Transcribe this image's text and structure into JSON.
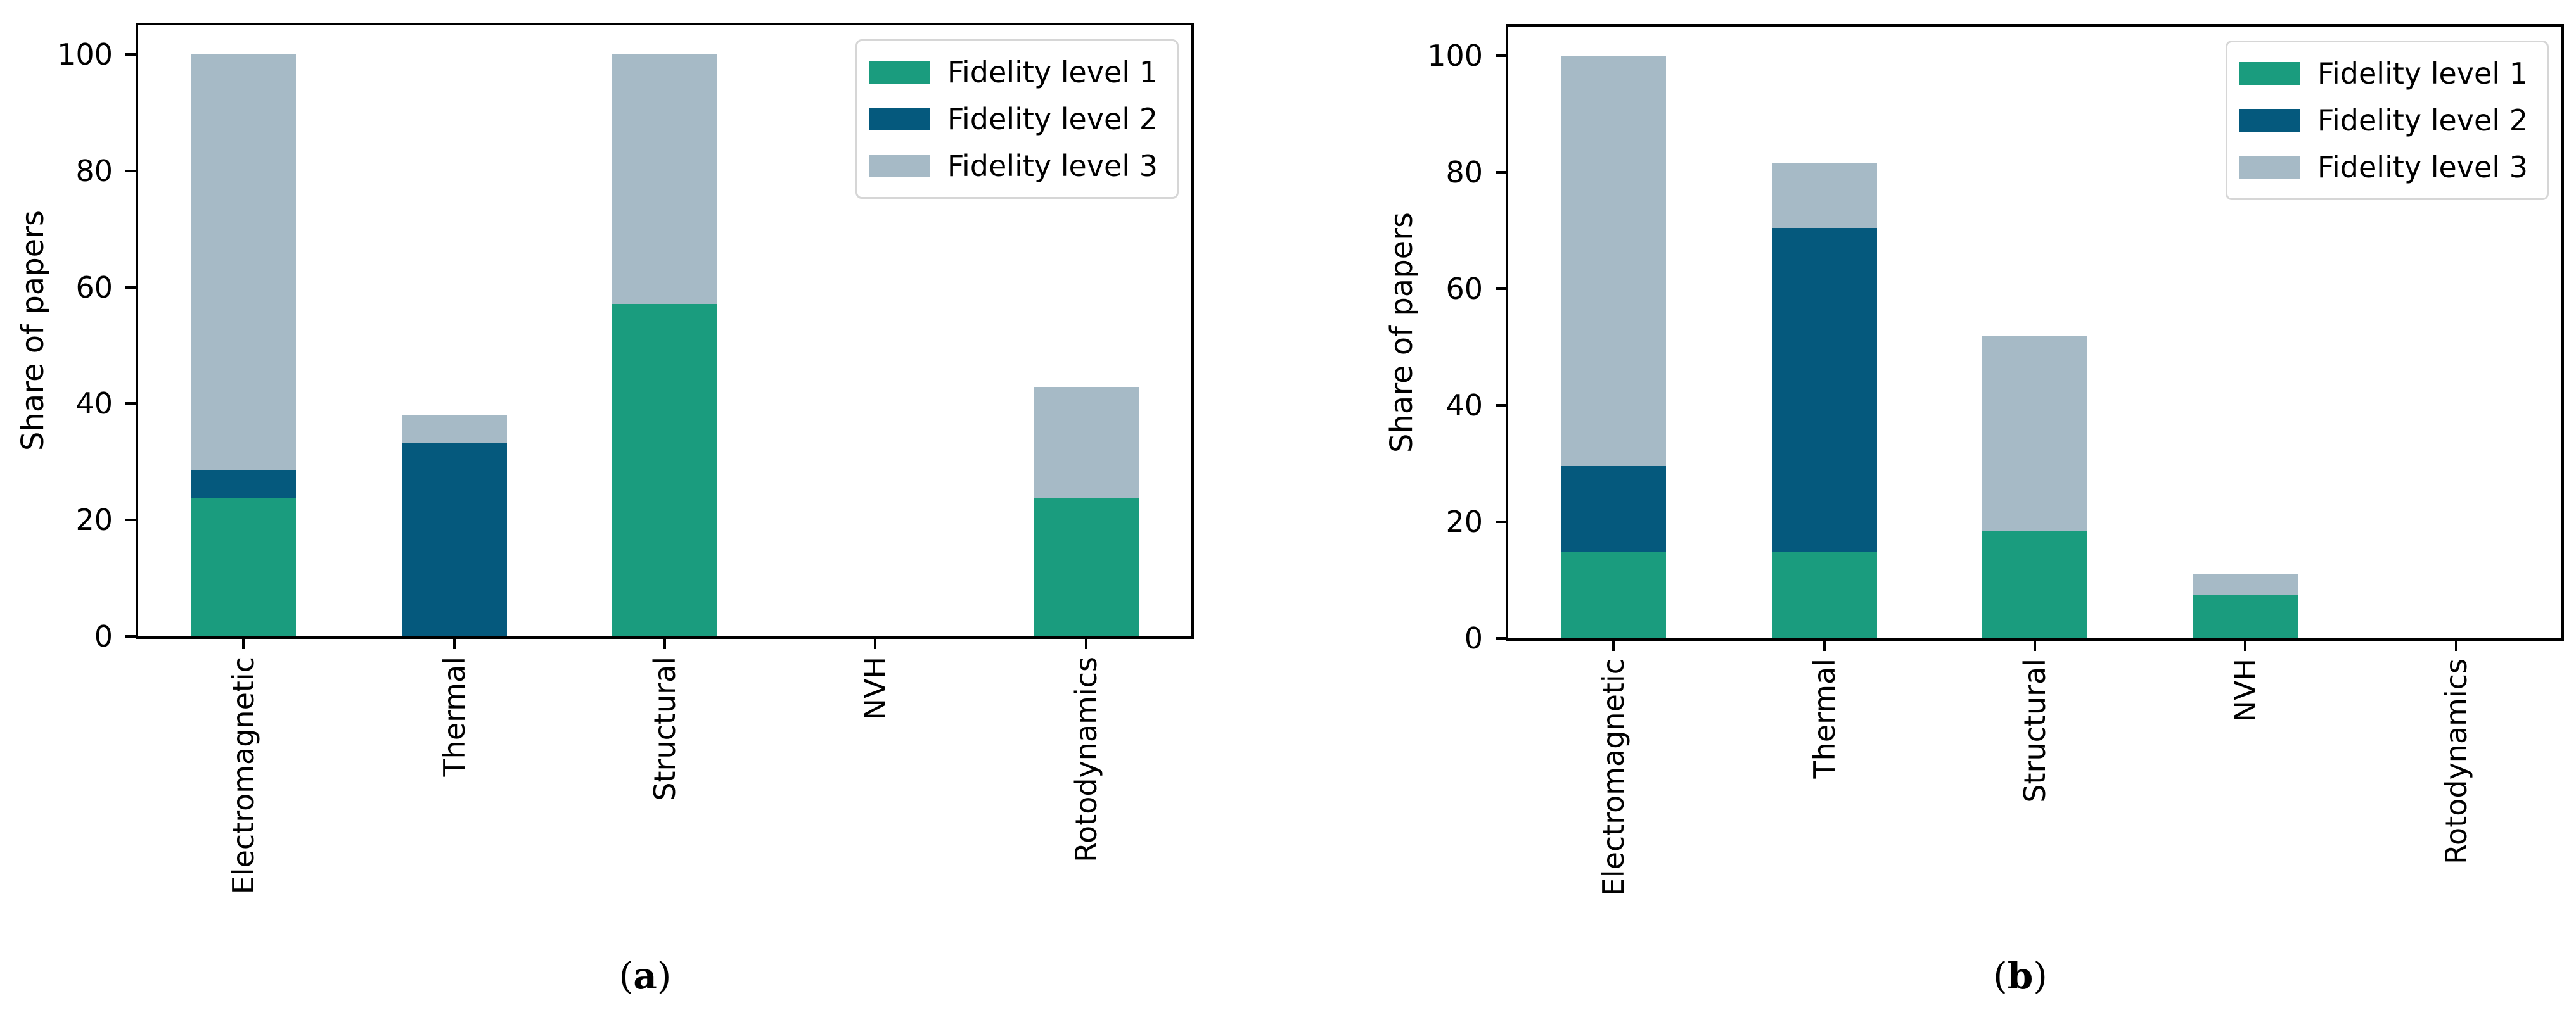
{
  "chart_data": [
    {
      "type": "bar",
      "stacked": true,
      "panel": "a",
      "ylabel": "Share of papers",
      "xlabel": "",
      "ylim": [
        0,
        105
      ],
      "yticks": [
        0,
        20,
        40,
        60,
        80,
        100
      ],
      "grid": false,
      "legend_position": "upper right",
      "categories": [
        "Electromagnetic",
        "Thermal",
        "Structural",
        "NVH",
        "Rotodynamics"
      ],
      "series": [
        {
          "name": "Fidelity level 1",
          "color": "#1a9c7e",
          "values": [
            23.8,
            0,
            57.1,
            0,
            23.8
          ]
        },
        {
          "name": "Fidelity level 2",
          "color": "#05597d",
          "values": [
            4.8,
            33.3,
            0,
            0,
            0
          ]
        },
        {
          "name": "Fidelity level 3",
          "color": "#a6bac6",
          "values": [
            71.4,
            4.8,
            42.9,
            0,
            19.1
          ]
        }
      ],
      "caption": {
        "open": "(",
        "letter": "a",
        "close": ")"
      }
    },
    {
      "type": "bar",
      "stacked": true,
      "panel": "b",
      "ylabel": "Share of papers",
      "xlabel": "",
      "ylim": [
        0,
        105
      ],
      "yticks": [
        0,
        20,
        40,
        60,
        80,
        100
      ],
      "grid": false,
      "legend_position": "upper right",
      "categories": [
        "Electromagnetic",
        "Thermal",
        "Structural",
        "NVH",
        "Rotodynamics"
      ],
      "series": [
        {
          "name": "Fidelity level 1",
          "color": "#1a9c7e",
          "values": [
            14.8,
            14.8,
            18.5,
            7.4,
            0
          ]
        },
        {
          "name": "Fidelity level 2",
          "color": "#05597d",
          "values": [
            14.8,
            55.6,
            0,
            0,
            0
          ]
        },
        {
          "name": "Fidelity level 3",
          "color": "#a6bac6",
          "values": [
            70.4,
            11.1,
            33.4,
            3.7,
            0
          ]
        }
      ],
      "caption": {
        "open": "(",
        "letter": "b",
        "close": ")"
      }
    }
  ]
}
